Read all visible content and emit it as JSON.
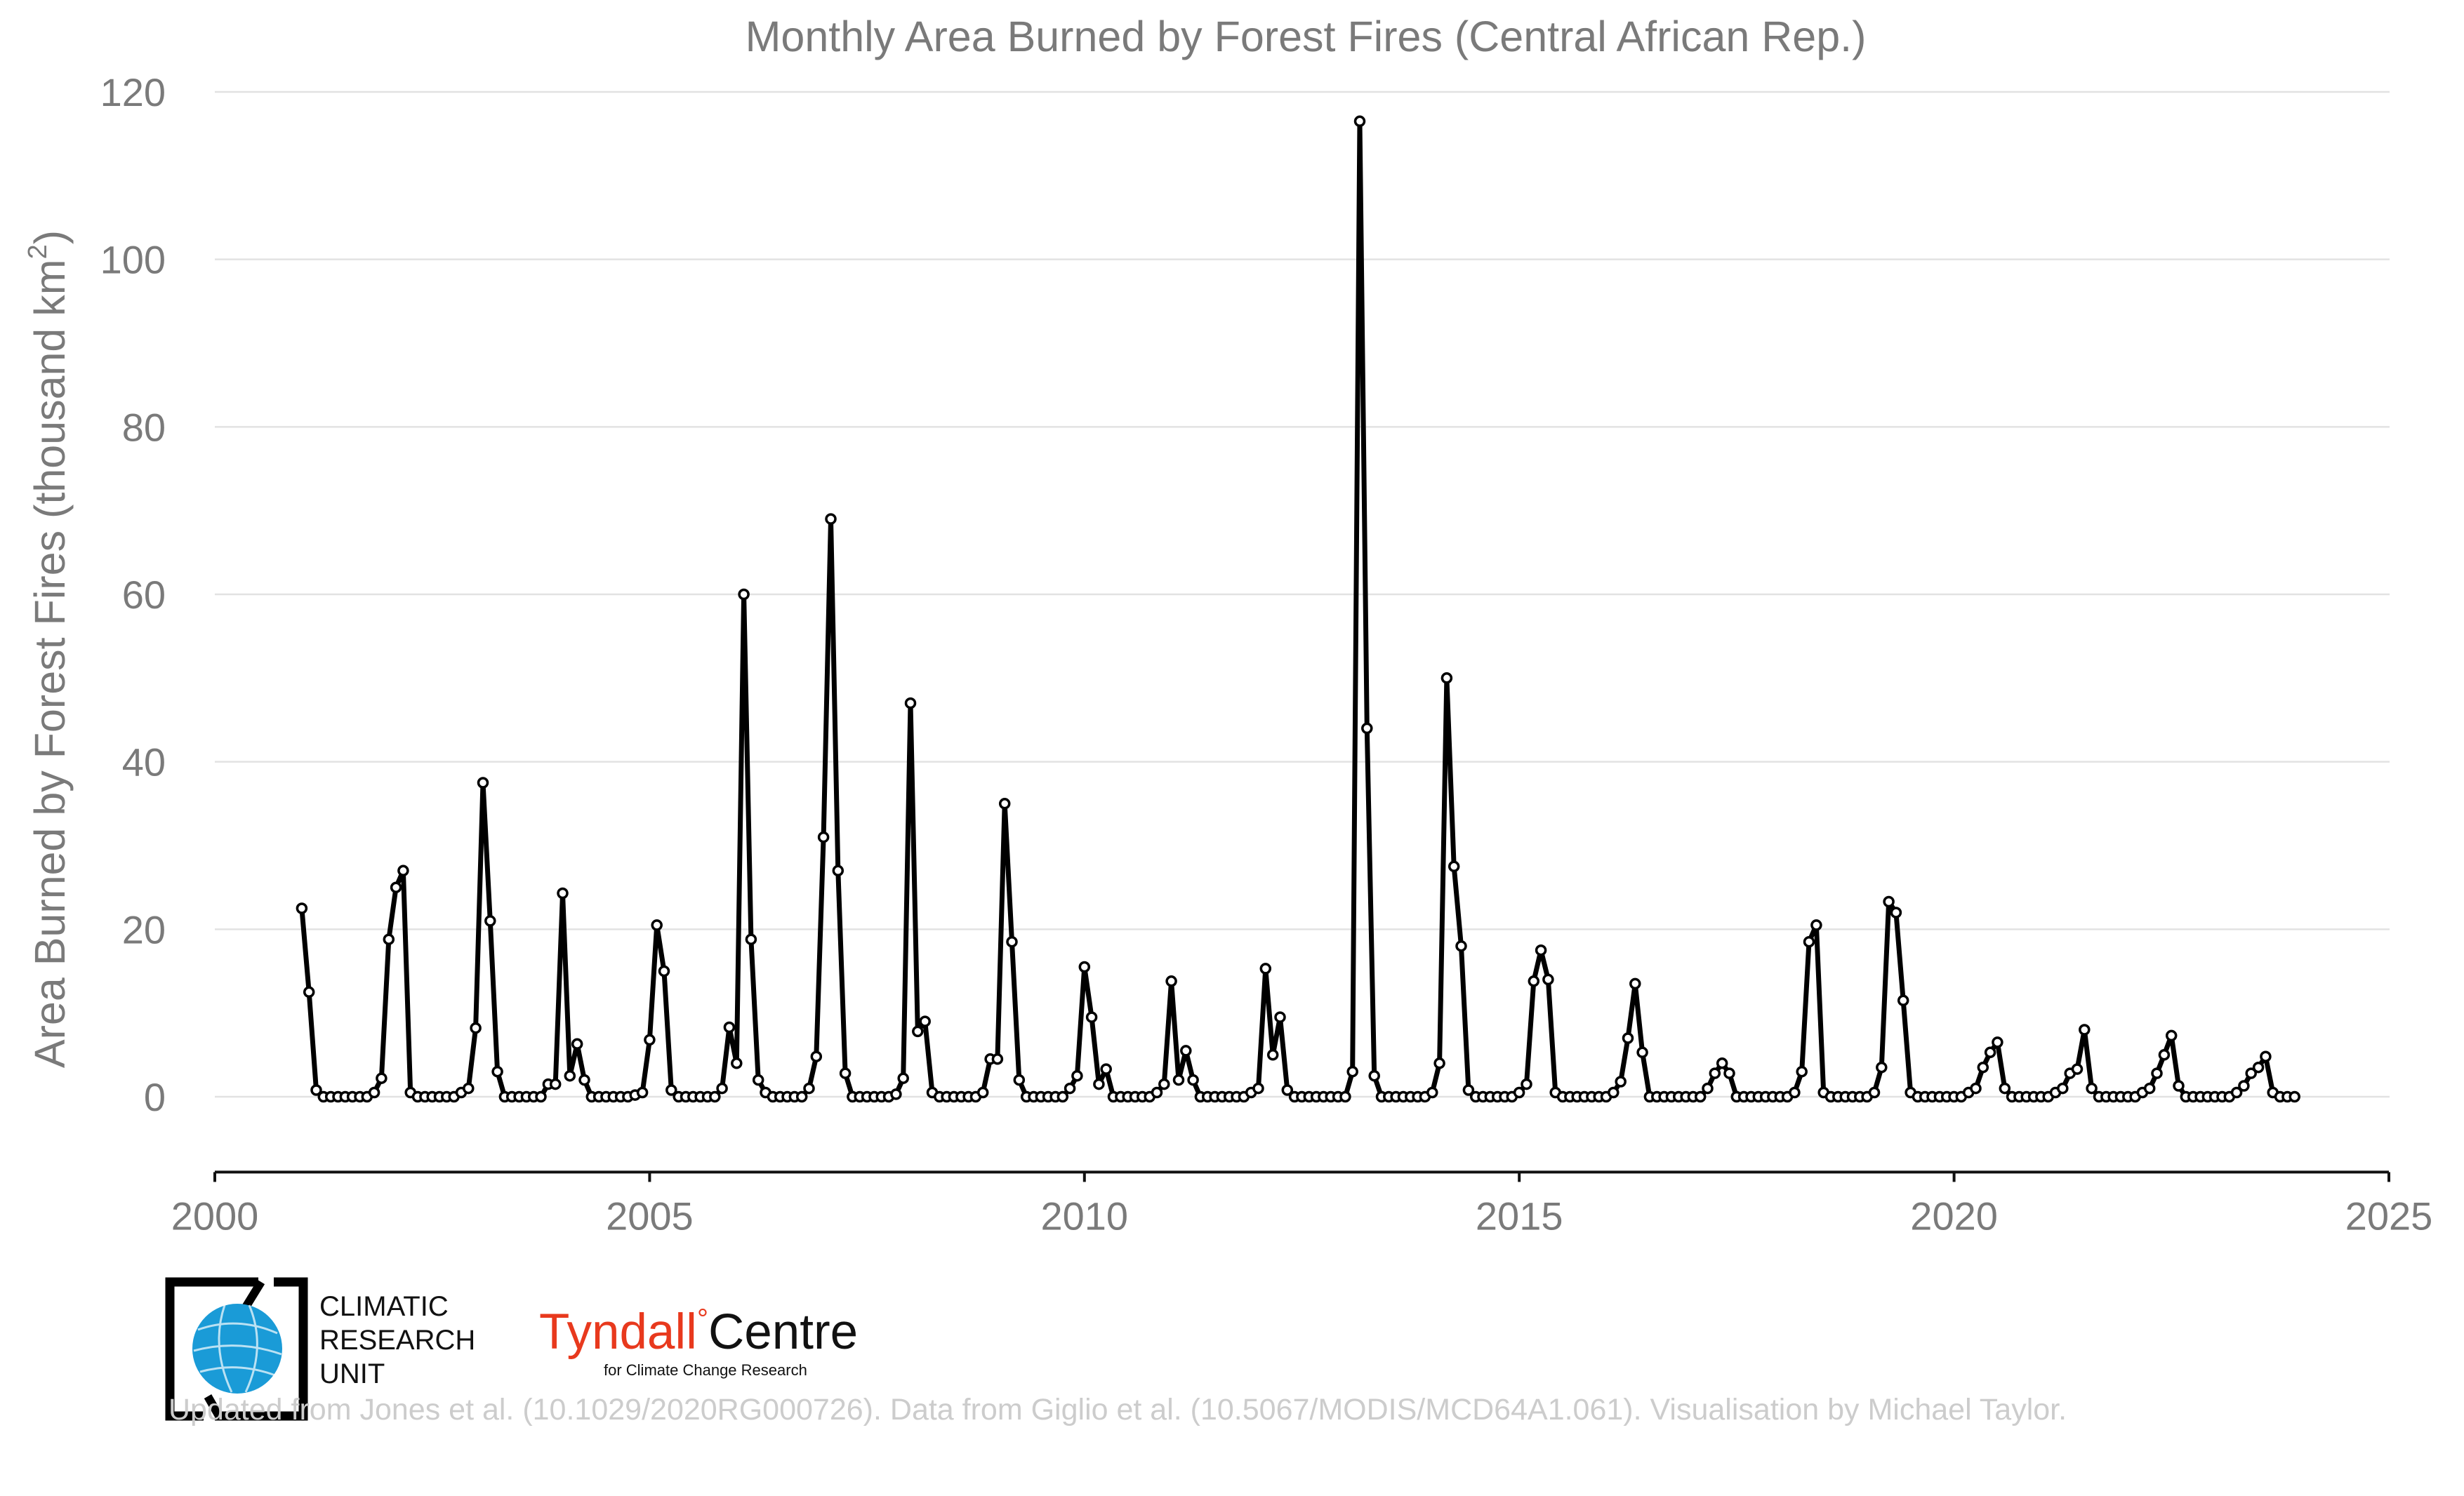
{
  "chart_data": {
    "type": "line",
    "title": "Monthly Area Burned by Forest Fires (Central African Rep.)",
    "ylabel": "Area Burned by Forest Fires (thousand km²)",
    "ylabel_main": "Area Burned by Forest Fires (thousand km",
    "ylabel_sup": "2",
    "ylabel_close": ")",
    "xlim": [
      2000,
      2025
    ],
    "ylim": [
      -9,
      120
    ],
    "x_ticks": [
      2000,
      2005,
      2010,
      2015,
      2020,
      2025
    ],
    "y_ticks": [
      0,
      20,
      40,
      60,
      80,
      100,
      120
    ],
    "grid": true,
    "x_start": 2001.0,
    "x_step": 0.08333,
    "series": [
      {
        "values": [
          22.5,
          12.5,
          0.8,
          0,
          0,
          0,
          0,
          0,
          0,
          0,
          0.5,
          2.2,
          18.8,
          25.0,
          27.0,
          0.5,
          0,
          0,
          0,
          0,
          0,
          0,
          0.5,
          1.0,
          8.2,
          37.5,
          21.0,
          3.0,
          0,
          0,
          0,
          0,
          0,
          0,
          1.5,
          1.5,
          24.3,
          2.5,
          6.3,
          2.0,
          0,
          0,
          0,
          0,
          0,
          0,
          0.2,
          0.5,
          6.8,
          20.5,
          15.0,
          0.8,
          0,
          0,
          0,
          0,
          0,
          0,
          1.0,
          8.3,
          4.0,
          60.0,
          18.8,
          2.0,
          0.5,
          0,
          0,
          0,
          0,
          0,
          1.0,
          4.8,
          31.0,
          69.0,
          27.0,
          2.8,
          0,
          0,
          0,
          0,
          0,
          0,
          0.3,
          2.2,
          47.0,
          7.8,
          9.0,
          0.5,
          0,
          0,
          0,
          0,
          0,
          0,
          0.5,
          4.5,
          4.5,
          35.0,
          18.5,
          2.0,
          0,
          0,
          0,
          0,
          0,
          0,
          1.0,
          2.5,
          15.5,
          9.5,
          1.5,
          3.3,
          0,
          0,
          0,
          0,
          0,
          0,
          0.5,
          1.5,
          13.8,
          2.0,
          5.5,
          2.0,
          0,
          0,
          0,
          0,
          0,
          0,
          0,
          0.5,
          1.0,
          15.3,
          5.0,
          9.5,
          0.8,
          0,
          0,
          0,
          0,
          0,
          0,
          0,
          0,
          3.0,
          116.5,
          44.0,
          2.5,
          0,
          0,
          0,
          0,
          0,
          0,
          0,
          0.5,
          4.0,
          50.0,
          27.5,
          18.0,
          0.8,
          0,
          0,
          0,
          0,
          0,
          0,
          0.5,
          1.5,
          13.8,
          17.5,
          14.0,
          0.5,
          0,
          0,
          0,
          0,
          0,
          0,
          0,
          0.5,
          1.8,
          7.0,
          13.5,
          5.3,
          0,
          0,
          0,
          0,
          0,
          0,
          0,
          0,
          1.0,
          2.8,
          4.0,
          2.8,
          0,
          0,
          0,
          0,
          0,
          0,
          0,
          0,
          0.5,
          3.0,
          18.5,
          20.5,
          0.5,
          0,
          0,
          0,
          0,
          0,
          0,
          0.5,
          3.5,
          23.3,
          22.0,
          11.5,
          0.5,
          0,
          0,
          0,
          0,
          0,
          0,
          0,
          0.5,
          1.0,
          3.5,
          5.3,
          6.5,
          1.0,
          0,
          0,
          0,
          0,
          0,
          0,
          0.5,
          1.0,
          2.8,
          3.3,
          8.0,
          1.0,
          0,
          0,
          0,
          0,
          0,
          0,
          0.5,
          1.0,
          2.8,
          5.0,
          7.3,
          1.3,
          0,
          0,
          0,
          0,
          0,
          0,
          0,
          0.5,
          1.3,
          2.8,
          3.5,
          4.8,
          0.5,
          0,
          0,
          0
        ]
      }
    ]
  },
  "logos": {
    "cru_line1": "CLIMATIC",
    "cru_line2": "RESEARCH",
    "cru_line3": "UNIT",
    "tyndall_name": "Tyndall",
    "tyndall_degree": "°",
    "tyndall_centre": "Centre",
    "tyndall_sub": "for Climate Change Research"
  },
  "footer": "Updated from Jones et al. (10.1029/2020RG000726). Data from Giglio et al. (10.5067/MODIS/MCD64A1.061). Visualisation by Michael Taylor.",
  "colors": {
    "line": "#000000",
    "marker_fill": "#ffffff",
    "text": "#7a7a7a",
    "grid": "#e2e2e2",
    "cru_blue": "#1a9bd7",
    "tyndall_red": "#e8391d",
    "footer": "#cccccc"
  }
}
